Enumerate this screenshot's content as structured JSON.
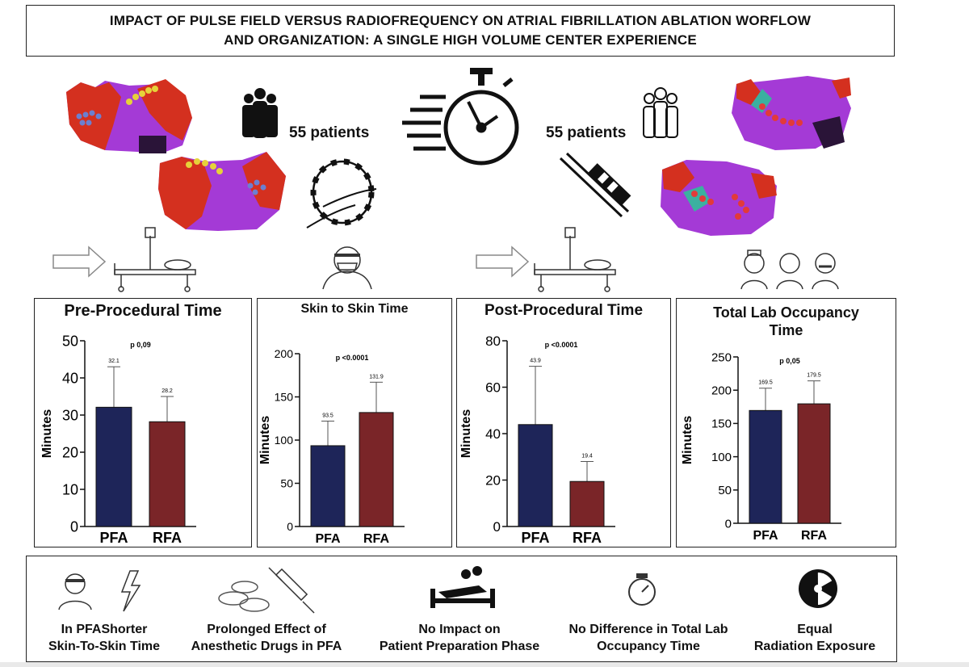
{
  "title": {
    "line1": "IMPACT OF PULSE FIELD VERSUS RADIOFREQUENCY ON ATRIAL FIBRILLATION ABLATION WORFLOW",
    "line2": "AND ORGANIZATION: A SINGLE HIGH VOLUME CENTER EXPERIENCE"
  },
  "groups": {
    "left_count": "55 patients",
    "right_count": "55 patients"
  },
  "colors": {
    "pfa": "#1e2559",
    "rfa": "#7a2528",
    "map_red": "#d4301f",
    "map_purple": "#a43ad6"
  },
  "icons": [
    "people-icon",
    "stopwatch-icon",
    "catheter-icon",
    "arrow-icon",
    "hospital-bed-icon",
    "surgeon-icon",
    "medical-staff-icon",
    "lightning-icon",
    "pills-icon",
    "syringe-icon",
    "patient-bed-icon",
    "timer-icon",
    "radiation-icon"
  ],
  "chart_data": [
    {
      "type": "bar",
      "title": "Pre-Procedural Time",
      "categories": [
        "PFA",
        "RFA"
      ],
      "values": [
        32.1,
        28.2
      ],
      "value_labels": [
        "32.1",
        "28.2"
      ],
      "error_upper": [
        43,
        35
      ],
      "ylabel": "Minutes",
      "ylim": [
        0,
        50
      ],
      "yticks": [
        "0",
        "10",
        "20",
        "30",
        "40",
        "50"
      ],
      "pvalue": "p 0,09"
    },
    {
      "type": "bar",
      "title": "Skin to Skin Time",
      "categories": [
        "PFA",
        "RFA"
      ],
      "values": [
        93.5,
        131.9
      ],
      "value_labels": [
        "93.5",
        "131.9"
      ],
      "error_upper": [
        122,
        167
      ],
      "ylabel": "Minutes",
      "ylim": [
        0,
        200
      ],
      "yticks": [
        "0",
        "50",
        "100",
        "150",
        "200"
      ],
      "pvalue": "p <0.0001"
    },
    {
      "type": "bar",
      "title": "Post-Procedural Time",
      "categories": [
        "PFA",
        "RFA"
      ],
      "values": [
        43.9,
        19.4
      ],
      "value_labels": [
        "43.9",
        "19.4"
      ],
      "error_upper": [
        69,
        28
      ],
      "ylabel": "Minutes",
      "ylim": [
        0,
        80
      ],
      "yticks": [
        "0",
        "20",
        "40",
        "60",
        "80"
      ],
      "pvalue": "p <0.0001"
    },
    {
      "type": "bar",
      "title": "Total Lab Occupancy Time",
      "categories": [
        "PFA",
        "RFA"
      ],
      "values": [
        169.5,
        179.5
      ],
      "value_labels": [
        "169.5",
        "179.5"
      ],
      "error_upper": [
        203,
        214
      ],
      "ylabel": "Minutes",
      "ylim": [
        0,
        250
      ],
      "yticks": [
        "0",
        "50",
        "100",
        "150",
        "200",
        "250"
      ],
      "pvalue": "p 0,05"
    }
  ],
  "findings": [
    {
      "line1": "In PFAShorter",
      "line2": "Skin-To-Skin Time"
    },
    {
      "line1": "Prolonged Effect of",
      "line2": "Anesthetic Drugs in PFA"
    },
    {
      "line1": "No Impact on",
      "line2": "Patient Preparation Phase"
    },
    {
      "line1": "No Difference in Total Lab",
      "line2": "Occupancy Time"
    },
    {
      "line1": "Equal",
      "line2": "Radiation Exposure"
    }
  ]
}
